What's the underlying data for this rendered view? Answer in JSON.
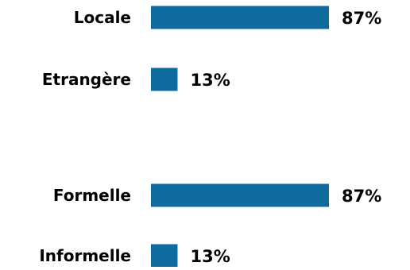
{
  "chart_data": [
    {
      "type": "bar",
      "orientation": "horizontal",
      "categories": [
        "Locale",
        "Etrangère"
      ],
      "values": [
        87,
        13
      ],
      "data_labels": [
        "87%",
        "13%"
      ],
      "xlim": [
        0,
        87
      ],
      "grid": false,
      "axes_visible": false
    },
    {
      "type": "bar",
      "orientation": "horizontal",
      "categories": [
        "Formelle",
        "Informelle"
      ],
      "values": [
        87,
        13
      ],
      "data_labels": [
        "87%",
        "13%"
      ],
      "xlim": [
        0,
        87
      ],
      "grid": false,
      "axes_visible": false
    }
  ],
  "colors": {
    "bar": "#0F6AA0",
    "text": "#000000",
    "background": "#FFFFFF"
  }
}
